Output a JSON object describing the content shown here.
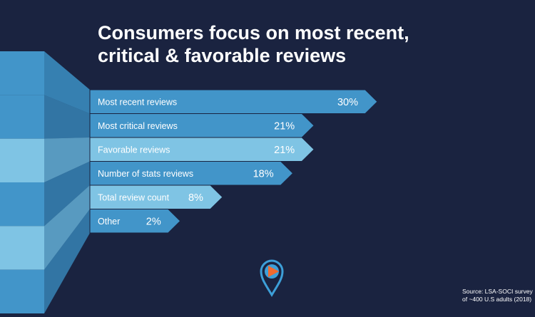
{
  "title_line1": "Consumers focus on most recent,",
  "title_line2": "critical & favorable reviews",
  "source_line1": "Source: LSA-SOCI survey",
  "source_line2": "of ~400 U.S adults (2018)",
  "colors": {
    "background": "#1a2340",
    "bar_dark": "#4295c9",
    "bar_light": "#7fc4e4",
    "funnel_shadow": "#2f78ad",
    "logo_blue": "#3d9fd8",
    "logo_orange": "#f26a2e"
  },
  "logo_icon": "map-pin-play-icon",
  "chart_data": {
    "type": "bar",
    "orientation": "horizontal",
    "categories": [
      "Most recent reviews",
      "Most critical reviews",
      "Favorable reviews",
      "Number of stats reviews",
      "Total review count",
      "Other"
    ],
    "values": [
      30,
      21,
      21,
      18,
      8,
      2
    ],
    "value_labels": [
      "30%",
      "21%",
      "21%",
      "18%",
      "8%",
      "2%"
    ],
    "unit": "%",
    "xlim": [
      0,
      30
    ],
    "highlight": [
      false,
      false,
      true,
      false,
      true,
      false
    ],
    "grid": false,
    "legend": "none"
  }
}
